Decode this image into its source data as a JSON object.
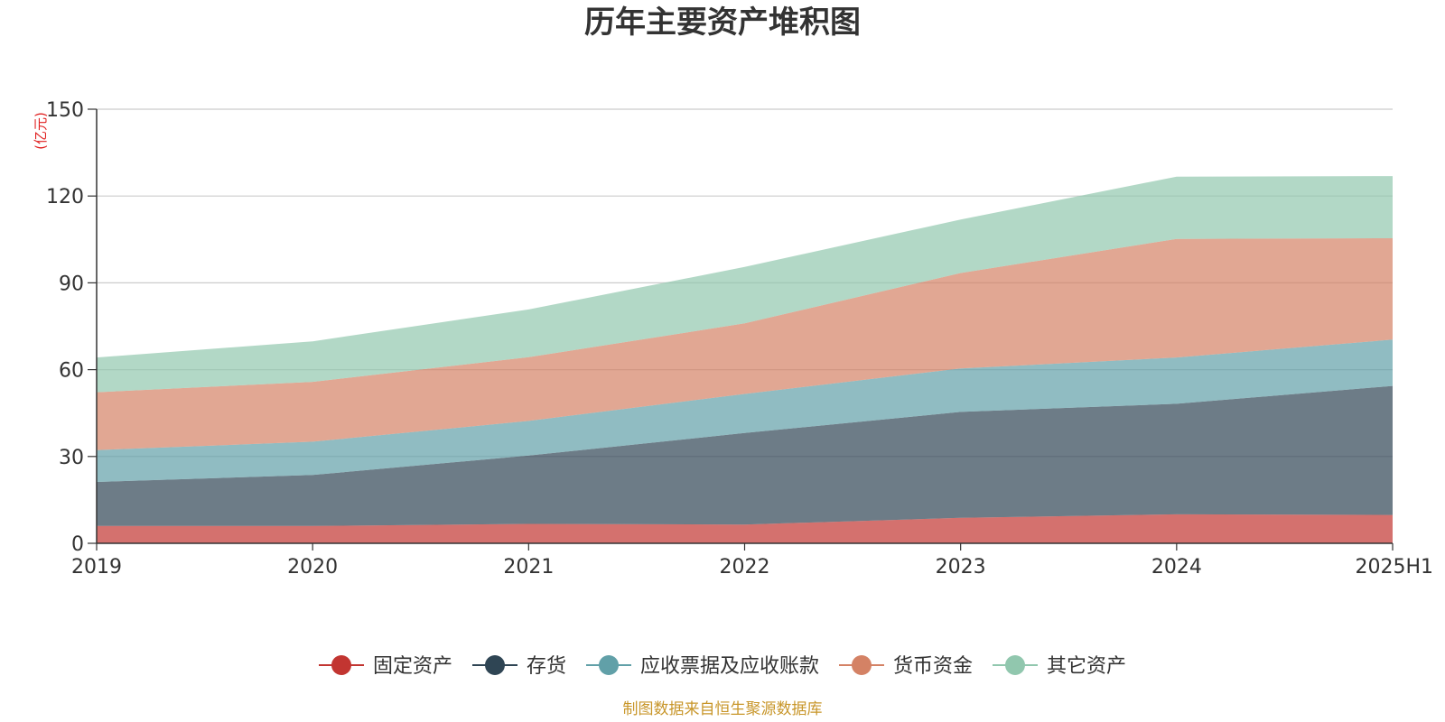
{
  "colors": {
    "fixed_assets": "#c23531",
    "inventory": "#2f4554",
    "receivables": "#61a0a8",
    "cash": "#d48265",
    "other": "#91c7ae",
    "source_text": "#c8962a",
    "unit_text": "#e02020"
  },
  "chart_data": {
    "type": "area",
    "stacked": true,
    "title": "历年主要资产堆积图",
    "unit": "(亿元)",
    "x": [
      "2019",
      "2020",
      "2021",
      "2022",
      "2023",
      "2024",
      "2025H1"
    ],
    "ylim": [
      0,
      150
    ],
    "yticks": [
      "0",
      "30",
      "60",
      "90",
      "120",
      "150"
    ],
    "grid": true,
    "legend_position": "bottom",
    "series": [
      {
        "name": "固定资产",
        "color_key": "fixed_assets",
        "values": [
          6.0,
          6.0,
          6.7,
          6.5,
          8.8,
          10.0,
          9.8
        ]
      },
      {
        "name": "存货",
        "color_key": "inventory",
        "values": [
          15.2,
          17.6,
          23.6,
          31.6,
          36.6,
          38.2,
          44.6
        ]
      },
      {
        "name": "应收票据及应收账款",
        "color_key": "receivables",
        "values": [
          11.0,
          11.5,
          12.0,
          13.5,
          15.0,
          16.0,
          16.0
        ]
      },
      {
        "name": "货币资金",
        "color_key": "cash",
        "values": [
          20.0,
          20.7,
          22.0,
          24.4,
          33.0,
          41.0,
          35.0
        ]
      },
      {
        "name": "其它资产",
        "color_key": "other",
        "values": [
          12.0,
          14.0,
          16.5,
          19.5,
          18.5,
          21.5,
          21.5
        ]
      }
    ]
  },
  "source": "制图数据来自恒生聚源数据库"
}
